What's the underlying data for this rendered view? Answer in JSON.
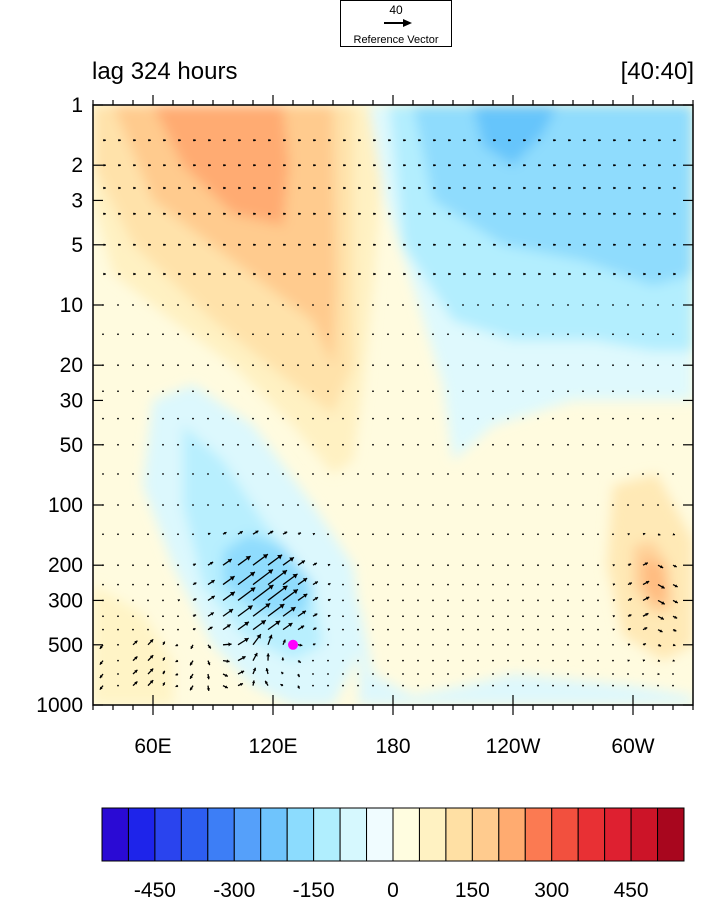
{
  "reference_vector": {
    "magnitude": "40",
    "label": "Reference Vector"
  },
  "title_left": "lag 324 hours",
  "title_right": "[40:40]",
  "chart_data": {
    "type": "heatmap",
    "overlay": "vector field",
    "x_ticks": [
      {
        "lon": 60,
        "label": "60E"
      },
      {
        "lon": 120,
        "label": "120E"
      },
      {
        "lon": 180,
        "label": "180"
      },
      {
        "lon": 240,
        "label": "120W"
      },
      {
        "lon": 300,
        "label": "60W"
      }
    ],
    "xlim": [
      30,
      330
    ],
    "y_axis": "pressure (log scale, inverted)",
    "ylim": [
      1000,
      1
    ],
    "y_ticks": [
      1,
      2,
      3,
      5,
      10,
      20,
      30,
      50,
      100,
      200,
      300,
      500,
      1000
    ],
    "colorbar": {
      "levels": [
        -550,
        -500,
        -450,
        -400,
        -350,
        -300,
        -250,
        -200,
        -150,
        -100,
        -50,
        0,
        50,
        100,
        150,
        200,
        250,
        300,
        350,
        400,
        450,
        500,
        550
      ],
      "labeled": [
        -450,
        -300,
        -150,
        0,
        150,
        300,
        450
      ],
      "colors": [
        "#2a0ad4",
        "#1e24ea",
        "#2a44ee",
        "#2d5ef2",
        "#3d7ef6",
        "#55a0fa",
        "#6fc4fc",
        "#8cdcfe",
        "#b0eefe",
        "#d6f8fe",
        "#f0fcff",
        "#fffde0",
        "#fff2c2",
        "#ffe0a4",
        "#ffcb8e",
        "#ffab70",
        "#fb7a52",
        "#f2503e",
        "#e83034",
        "#de2030",
        "#cc1428",
        "#a8061e"
      ]
    },
    "marker": {
      "lon": 130,
      "p": 500,
      "color": "#ff00ff"
    },
    "features": [
      {
        "type": "warm",
        "lon": 105,
        "p": 2,
        "value": 175,
        "note": "upper-level warm anomaly centered near 105E"
      },
      {
        "type": "warm_ridge",
        "lon": 145,
        "p": 20,
        "value": 100
      },
      {
        "type": "cold",
        "lon": 240,
        "p": 1,
        "value": -125,
        "note": "upper-level cold anomaly near 120W"
      },
      {
        "type": "cold",
        "lon": 110,
        "p": 200,
        "value": -100,
        "note": "lower tropospheric cold anomaly near 110E"
      },
      {
        "type": "warm",
        "lon": 310,
        "p": 250,
        "value": 100,
        "note": "warm anomaly near 50W lower levels"
      }
    ]
  }
}
